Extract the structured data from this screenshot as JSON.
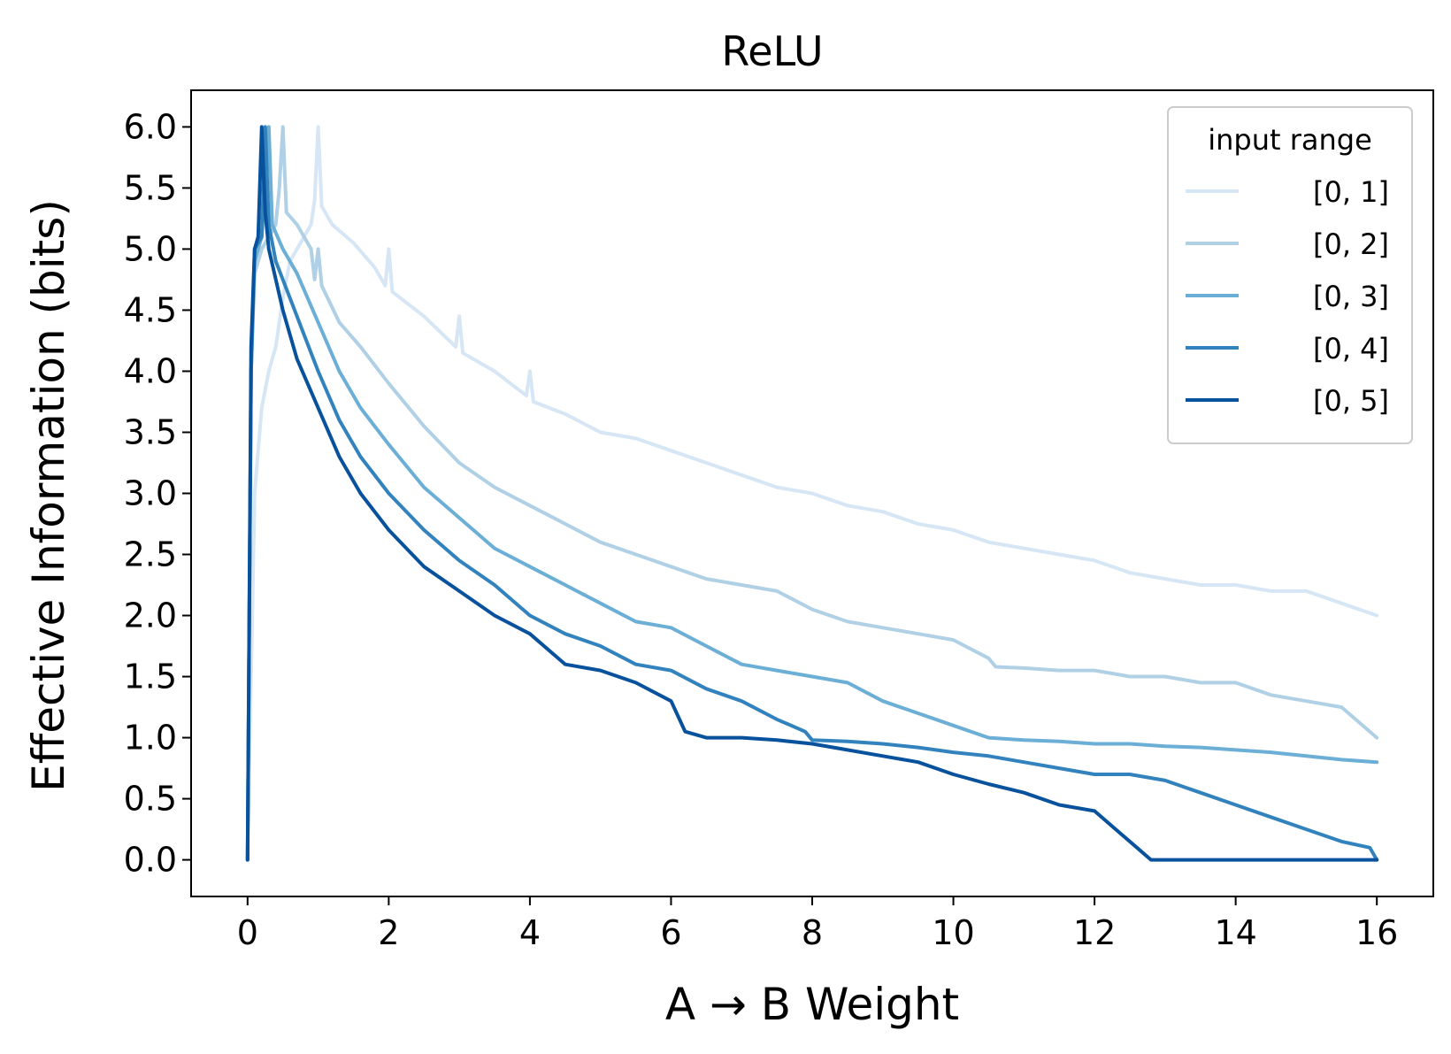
{
  "chart_data": {
    "type": "line",
    "title": "ReLU",
    "xlabel": "A → B Weight",
    "ylabel": "Effective Information (bits)",
    "xlim": [
      -0.8,
      16.8
    ],
    "ylim": [
      -0.3,
      6.3
    ],
    "xticks": [
      0,
      2,
      4,
      6,
      8,
      10,
      12,
      14,
      16
    ],
    "yticks": [
      0.0,
      0.5,
      1.0,
      1.5,
      2.0,
      2.5,
      3.0,
      3.5,
      4.0,
      4.5,
      5.0,
      5.5,
      6.0
    ],
    "xtick_labels": [
      "0",
      "2",
      "4",
      "6",
      "8",
      "10",
      "12",
      "14",
      "16"
    ],
    "ytick_labels": [
      "0.0",
      "0.5",
      "1.0",
      "1.5",
      "2.0",
      "2.5",
      "3.0",
      "3.5",
      "4.0",
      "4.5",
      "5.0",
      "5.5",
      "6.0"
    ],
    "grid": false,
    "legend": {
      "title": "input range",
      "position": "top-right"
    },
    "series": [
      {
        "name": "[0, 1]",
        "color": "#d6e6f4",
        "x": [
          0,
          0.1,
          0.2,
          0.3,
          0.4,
          0.5,
          0.6,
          0.7,
          0.8,
          0.9,
          0.95,
          1.0,
          1.05,
          1.2,
          1.5,
          1.8,
          1.95,
          2.0,
          2.05,
          2.5,
          2.95,
          3.0,
          3.05,
          3.5,
          3.95,
          4.0,
          4.05,
          4.5,
          5.0,
          5.5,
          6.0,
          6.5,
          7.0,
          7.5,
          8.0,
          8.5,
          9.0,
          9.5,
          10.0,
          10.5,
          11.0,
          11.5,
          12.0,
          12.5,
          13.0,
          13.5,
          14.0,
          14.5,
          15.0,
          15.5,
          16.0
        ],
        "y": [
          0,
          3.0,
          3.7,
          4.0,
          4.2,
          4.6,
          4.9,
          5.0,
          5.1,
          5.2,
          5.4,
          6.0,
          5.35,
          5.2,
          5.05,
          4.85,
          4.7,
          5.0,
          4.65,
          4.45,
          4.2,
          4.45,
          4.15,
          4.0,
          3.8,
          4.0,
          3.75,
          3.65,
          3.5,
          3.45,
          3.35,
          3.25,
          3.15,
          3.05,
          3.0,
          2.9,
          2.85,
          2.75,
          2.7,
          2.6,
          2.55,
          2.5,
          2.45,
          2.35,
          2.3,
          2.25,
          2.25,
          2.2,
          2.2,
          2.1,
          2.0
        ]
      },
      {
        "name": "[0, 2]",
        "color": "#b0d0e6",
        "x": [
          0,
          0.05,
          0.1,
          0.2,
          0.3,
          0.4,
          0.45,
          0.5,
          0.55,
          0.7,
          0.9,
          0.95,
          1.0,
          1.05,
          1.3,
          1.6,
          2.0,
          2.5,
          3.0,
          3.5,
          4.0,
          4.5,
          5.0,
          5.5,
          6.0,
          6.5,
          7.0,
          7.5,
          8.0,
          8.5,
          9.0,
          9.5,
          10.0,
          10.5,
          10.6,
          11.0,
          11.5,
          12.0,
          12.5,
          13.0,
          13.5,
          14.0,
          14.5,
          15.0,
          15.5,
          16.0
        ],
        "y": [
          0,
          4.0,
          4.8,
          5.0,
          5.1,
          5.2,
          5.5,
          6.0,
          5.3,
          5.2,
          5.0,
          4.75,
          5.0,
          4.7,
          4.4,
          4.2,
          3.9,
          3.55,
          3.25,
          3.05,
          2.9,
          2.75,
          2.6,
          2.5,
          2.4,
          2.3,
          2.25,
          2.2,
          2.05,
          1.95,
          1.9,
          1.85,
          1.8,
          1.65,
          1.58,
          1.57,
          1.55,
          1.55,
          1.5,
          1.5,
          1.45,
          1.45,
          1.35,
          1.3,
          1.25,
          1.0
        ]
      },
      {
        "name": "[0, 3]",
        "color": "#6baed6",
        "x": [
          0,
          0.05,
          0.1,
          0.2,
          0.25,
          0.3,
          0.35,
          0.5,
          0.7,
          1.0,
          1.3,
          1.6,
          2.0,
          2.5,
          3.0,
          3.5,
          4.0,
          4.5,
          5.0,
          5.5,
          6.0,
          6.5,
          7.0,
          7.5,
          8.0,
          8.5,
          9.0,
          9.5,
          10.0,
          10.5,
          11.0,
          11.5,
          12.0,
          12.5,
          13.0,
          13.5,
          14.0,
          14.5,
          15.0,
          15.5,
          16.0
        ],
        "y": [
          0,
          4.0,
          4.9,
          5.1,
          5.5,
          6.0,
          5.2,
          5.0,
          4.8,
          4.4,
          4.0,
          3.7,
          3.4,
          3.05,
          2.8,
          2.55,
          2.4,
          2.25,
          2.1,
          1.95,
          1.9,
          1.75,
          1.6,
          1.55,
          1.5,
          1.45,
          1.3,
          1.2,
          1.1,
          1.0,
          0.98,
          0.97,
          0.95,
          0.95,
          0.93,
          0.92,
          0.9,
          0.88,
          0.85,
          0.82,
          0.8
        ]
      },
      {
        "name": "[0, 4]",
        "color": "#3182bd",
        "x": [
          0,
          0.05,
          0.1,
          0.2,
          0.25,
          0.3,
          0.4,
          0.6,
          0.8,
          1.0,
          1.3,
          1.6,
          2.0,
          2.5,
          3.0,
          3.5,
          4.0,
          4.5,
          5.0,
          5.5,
          6.0,
          6.5,
          7.0,
          7.5,
          7.9,
          8.0,
          8.5,
          9.0,
          9.5,
          10.0,
          10.5,
          11.0,
          11.5,
          12.0,
          12.5,
          13.0,
          13.5,
          14.0,
          14.5,
          15.0,
          15.5,
          15.9,
          16.0
        ],
        "y": [
          0,
          4.0,
          5.0,
          5.1,
          6.0,
          5.2,
          4.9,
          4.6,
          4.3,
          4.0,
          3.6,
          3.3,
          3.0,
          2.7,
          2.45,
          2.25,
          2.0,
          1.85,
          1.75,
          1.6,
          1.55,
          1.4,
          1.3,
          1.15,
          1.05,
          0.98,
          0.97,
          0.95,
          0.92,
          0.88,
          0.85,
          0.8,
          0.75,
          0.7,
          0.7,
          0.65,
          0.55,
          0.45,
          0.35,
          0.25,
          0.15,
          0.1,
          0
        ]
      },
      {
        "name": "[0, 5]",
        "color": "#08519c",
        "x": [
          0,
          0.05,
          0.1,
          0.15,
          0.2,
          0.25,
          0.3,
          0.5,
          0.7,
          1.0,
          1.3,
          1.6,
          2.0,
          2.5,
          3.0,
          3.5,
          4.0,
          4.5,
          5.0,
          5.5,
          6.0,
          6.2,
          6.5,
          7.0,
          7.5,
          8.0,
          8.5,
          9.0,
          9.5,
          10.0,
          10.5,
          11.0,
          11.5,
          12.0,
          12.3,
          12.6,
          12.8,
          13.0,
          13.5,
          14.0,
          14.5,
          15.0,
          15.5,
          16.0
        ],
        "y": [
          0,
          4.2,
          5.0,
          5.1,
          6.0,
          5.3,
          5.0,
          4.5,
          4.1,
          3.7,
          3.3,
          3.0,
          2.7,
          2.4,
          2.2,
          2.0,
          1.85,
          1.6,
          1.55,
          1.45,
          1.3,
          1.05,
          1.0,
          1.0,
          0.98,
          0.95,
          0.9,
          0.85,
          0.8,
          0.7,
          0.62,
          0.55,
          0.45,
          0.4,
          0.25,
          0.1,
          0,
          0,
          0,
          0,
          0,
          0,
          0,
          0
        ]
      }
    ]
  }
}
